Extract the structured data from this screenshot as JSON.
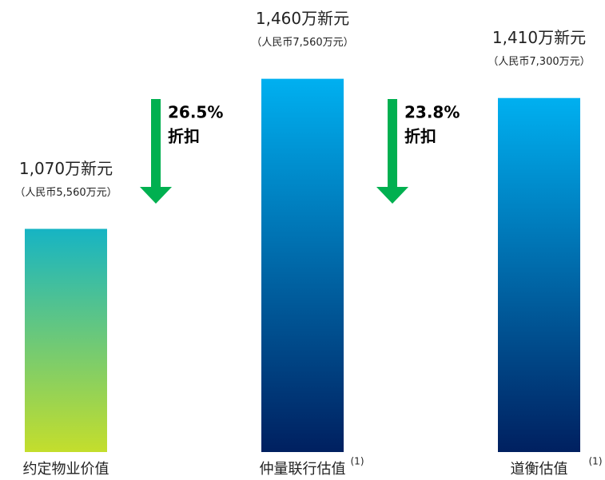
{
  "chart_data": {
    "type": "bar",
    "categories": [
      "约定物业价值",
      "仲量联行估值",
      "道衡估值"
    ],
    "category_notes": [
      null,
      "(1)",
      "(1)"
    ],
    "values": [
      1070,
      1460,
      1410
    ],
    "value_labels": [
      "1,070万新元",
      "1,460万新元",
      "1,410万新元"
    ],
    "sub_labels": [
      "（人民币5,560万元）",
      "（人民币7,560万元）",
      "（人民币7,300万元）"
    ],
    "gradients": [
      [
        "#16b4c4",
        "#c4de2c"
      ],
      [
        "#00b0f0",
        "#002060"
      ],
      [
        "#00b0f0",
        "#002060"
      ]
    ],
    "ylim": [
      490,
      1480
    ],
    "discounts": [
      {
        "value": 26.5,
        "label": "26.5%",
        "text": "折扣"
      },
      {
        "value": 23.8,
        "label": "23.8%",
        "text": "折扣"
      }
    ],
    "arrow_color": "#00b050"
  }
}
